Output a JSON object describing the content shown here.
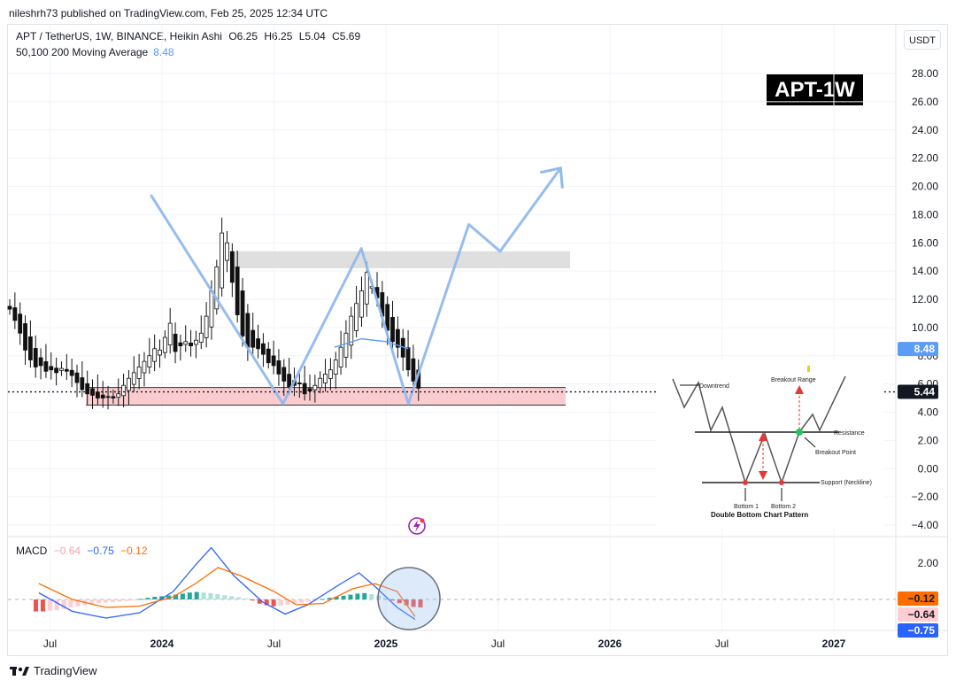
{
  "header": {
    "publisher_line": "nileshrh73 published on TradingView.com, Feb 25, 2025 12:34 UTC"
  },
  "legend": {
    "symbol_line": "APT / TetherUS, 1W, BINANCE, Heikin Ashi",
    "ohlc": {
      "o": "O6.25",
      "h": "H6.25",
      "l": "L5.04",
      "c": "C5.69"
    },
    "ma_label": "50,100,200 Moving Average",
    "ma_value": "8.48",
    "currency_button": "USDT"
  },
  "tag": "APT-1W",
  "macd_legend": {
    "label": "MACD",
    "v1": "−0.64",
    "v2": "−0.75",
    "v3": "−0.12"
  },
  "footer": {
    "brand": "TradingView"
  },
  "inset": {
    "title": "Double Bottom Chart Pattern",
    "labels": {
      "downtrend": "Downtrend",
      "breakout_range": "Breakout Range",
      "resistance": "Resistance",
      "breakout_point": "Breakout Point",
      "support": "Support (Neckline)",
      "bottom1": "Bottom 1",
      "bottom2": "Bottom 2"
    }
  },
  "colors": {
    "up": "#26a69a",
    "down": "#ef5350",
    "projection": "#90b9ee",
    "macd_line": "#2962ff",
    "signal_line": "#ff6d00",
    "zone": "#f8bbc0"
  },
  "chart_data": [
    {
      "type": "candlestick",
      "title": "",
      "ylim": [
        -5,
        29
      ],
      "y_ticks": [
        "28.00",
        "26.00",
        "24.00",
        "22.00",
        "20.00",
        "18.00",
        "16.00",
        "14.00",
        "12.00",
        "10.00",
        "8.00",
        "6.00",
        "4.00",
        "2.00",
        "0.00",
        "−2.00",
        "−4.00"
      ],
      "x_ticks": [
        "Jul",
        "2024",
        "Jul",
        "2025",
        "Jul",
        "2026",
        "Jul",
        "2027"
      ],
      "price_labels": {
        "ma": "8.48",
        "last": "5.44"
      },
      "last_price": 5.44,
      "ma_last": 8.48,
      "candles_close": [
        11.3,
        10.5,
        9.6,
        8.4,
        7.7,
        7.2,
        7.3,
        6.9,
        7.0,
        6.8,
        7.1,
        6.9,
        6.6,
        6.1,
        5.6,
        5.3,
        5.2,
        5.0,
        5.0,
        5.1,
        5.0,
        5.3,
        5.9,
        6.4,
        6.8,
        7.2,
        7.6,
        8.0,
        8.5,
        8.4,
        9.3,
        10.3,
        8.3,
        8.7,
        9.0,
        8.7,
        9.1,
        9.6,
        10.8,
        12.6,
        14.3,
        16.7,
        16.0,
        13.2,
        10.9,
        9.4,
        8.6,
        8.6,
        8.5,
        8.1,
        7.5,
        7.3,
        6.7,
        6.2,
        5.8,
        5.9,
        6.0,
        5.3,
        5.5,
        5.9,
        6.4,
        6.7,
        7.0,
        7.7,
        8.6,
        9.6,
        10.8,
        11.7,
        12.6,
        13.9,
        12.9,
        12.1,
        10.8,
        9.8,
        9.0,
        8.6,
        7.9,
        7.0,
        6.2,
        5.7
      ],
      "zones": [
        {
          "name": "resistance-zone",
          "y0": 14.2,
          "y1": 15.4
        },
        {
          "name": "support-zone",
          "y0": 4.5,
          "y1": 5.75
        }
      ],
      "projection_path": [
        [
          2023.95,
          19.4
        ],
        [
          2024.54,
          4.6
        ],
        [
          2024.89,
          15.6
        ],
        [
          2025.1,
          4.6
        ],
        [
          2025.37,
          17.3
        ],
        [
          2025.51,
          15.4
        ],
        [
          2025.78,
          21.3
        ]
      ],
      "ma_segment": [
        [
          2024.77,
          8.6
        ],
        [
          2024.89,
          9.2
        ],
        [
          2025.0,
          9.0
        ],
        [
          2025.1,
          8.5
        ]
      ]
    },
    {
      "type": "macd",
      "ylim": [
        -0.9,
        2.1
      ],
      "y_ticks": [
        "2.00"
      ],
      "values": {
        "macd": "−0.75",
        "signal": "−0.64",
        "histogram": "−0.12"
      },
      "histogram": [
        -0.45,
        -0.45,
        -0.42,
        -0.4,
        -0.35,
        -0.3,
        -0.26,
        -0.22,
        -0.18,
        -0.15,
        -0.12,
        -0.1,
        -0.08,
        -0.06,
        -0.04,
        0.02,
        0.06,
        0.1,
        0.12,
        0.15,
        0.18,
        0.22,
        0.26,
        0.28,
        0.26,
        0.24,
        0.2,
        0.16,
        0.12,
        0.08,
        0.04,
        -0.04,
        -0.16,
        -0.22,
        -0.26,
        -0.24,
        -0.2,
        -0.16,
        -0.12,
        -0.08,
        -0.04,
        0.02,
        0.06,
        0.1,
        0.14,
        0.18,
        0.22,
        0.24,
        0.2,
        0.14,
        0.06,
        -0.04,
        -0.14,
        -0.22,
        -0.28,
        -0.3
      ],
      "macd_line": [
        [
          2023.45,
          0.25
        ],
        [
          2023.6,
          -0.45
        ],
        [
          2023.75,
          -0.7
        ],
        [
          2023.9,
          -0.5
        ],
        [
          2024.05,
          0.3
        ],
        [
          2024.15,
          1.3
        ],
        [
          2024.22,
          1.95
        ],
        [
          2024.32,
          0.9
        ],
        [
          2024.45,
          -0.1
        ],
        [
          2024.55,
          -0.55
        ],
        [
          2024.65,
          -0.2
        ],
        [
          2024.8,
          0.6
        ],
        [
          2024.88,
          1.0
        ],
        [
          2024.95,
          0.5
        ],
        [
          2025.05,
          -0.3
        ],
        [
          2025.13,
          -0.75
        ]
      ],
      "signal_line": [
        [
          2023.45,
          0.6
        ],
        [
          2023.6,
          0.0
        ],
        [
          2023.75,
          -0.3
        ],
        [
          2023.9,
          -0.25
        ],
        [
          2024.05,
          0.1
        ],
        [
          2024.15,
          0.6
        ],
        [
          2024.25,
          1.2
        ],
        [
          2024.35,
          0.9
        ],
        [
          2024.5,
          0.3
        ],
        [
          2024.6,
          -0.2
        ],
        [
          2024.72,
          -0.15
        ],
        [
          2024.85,
          0.4
        ],
        [
          2024.95,
          0.6
        ],
        [
          2025.05,
          0.3
        ],
        [
          2025.13,
          -0.64
        ]
      ]
    }
  ]
}
